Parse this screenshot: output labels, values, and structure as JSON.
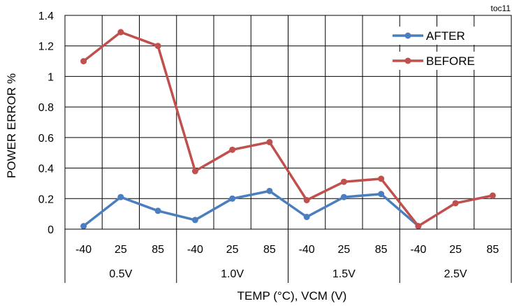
{
  "chart_data": {
    "type": "line",
    "corner_label": "toc11",
    "ylabel": "POWER ERROR %",
    "xlabel": "TEMP (°C),  VCM (V)",
    "ylim": [
      0,
      1.4
    ],
    "y_ticks": [
      "0",
      "0.2",
      "0.4",
      "0.6",
      "0.8",
      "1",
      "1.2",
      "1.4"
    ],
    "categories": [
      "-40",
      "25",
      "85",
      "-40",
      "25",
      "85",
      "-40",
      "25",
      "85",
      "-40",
      "25",
      "85"
    ],
    "groups": [
      "0.5V",
      "1.0V",
      "1.5V",
      "2.5V"
    ],
    "grid": true,
    "legend_position": "top-right",
    "series": [
      {
        "name": "AFTER",
        "color": "#4a7ebf",
        "values": [
          0.02,
          0.21,
          0.12,
          0.06,
          0.2,
          0.25,
          0.08,
          0.21,
          0.23,
          0.02,
          null,
          null
        ]
      },
      {
        "name": "BEFORE",
        "color": "#c0504d",
        "values": [
          1.1,
          1.29,
          1.2,
          0.38,
          0.52,
          0.57,
          0.19,
          0.31,
          0.33,
          0.02,
          0.17,
          0.22
        ]
      }
    ]
  }
}
